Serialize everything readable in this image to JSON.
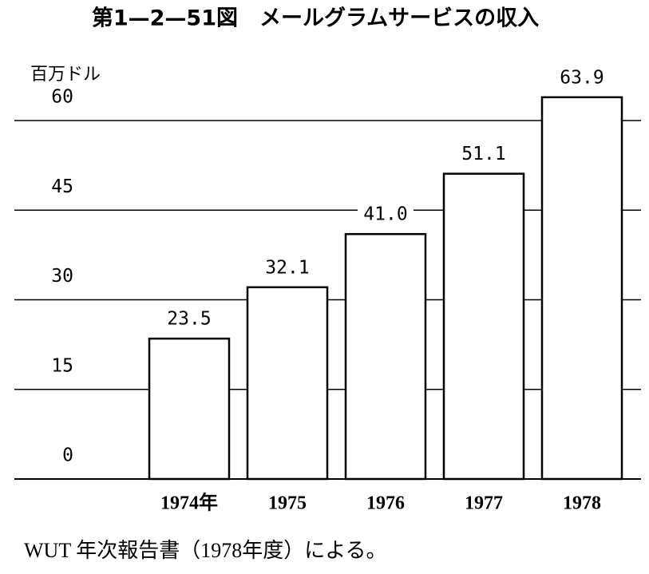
{
  "chart_data": {
    "type": "bar",
    "title": "第1—2—51図　メールグラムサービスの収入",
    "y_label": "百万ドル",
    "categories": [
      "1974年",
      "1975",
      "1976",
      "1977",
      "1978"
    ],
    "values": [
      23.5,
      32.1,
      41.0,
      51.1,
      63.9
    ],
    "value_labels": [
      "23.5",
      "32.1",
      "41.0",
      "51.1",
      "63.9"
    ],
    "color": "#ffffff",
    "ylim": [
      0,
      60
    ],
    "yticks": [
      0,
      15,
      30,
      45,
      60
    ],
    "grid": true,
    "source": "WUT 年次報告書（1978年度）による。"
  }
}
